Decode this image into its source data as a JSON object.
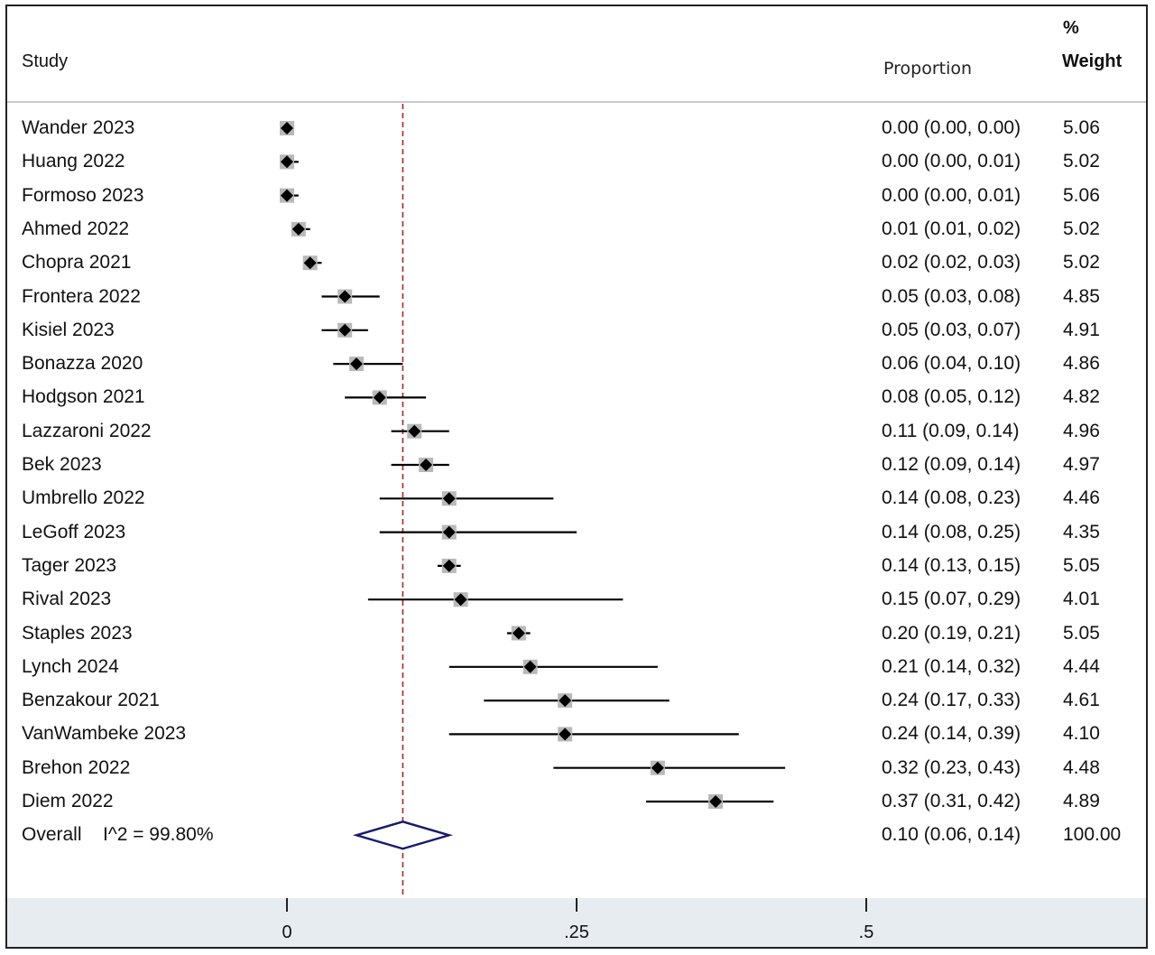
{
  "headers": {
    "study": "Study",
    "proportion": "Proportion",
    "pct": "%",
    "weight": "Weight"
  },
  "chart_data": {
    "type": "forest",
    "title": "",
    "xlabel": "",
    "ylabel": "",
    "xlim": [
      -0.1,
      0.72
    ],
    "x_ticks": [
      0,
      0.25,
      0.5
    ],
    "x_tick_labels": [
      "0",
      ".25",
      ".5"
    ],
    "reference_line": 0.1,
    "studies": [
      {
        "name": "Wander 2023",
        "est": 0.0,
        "lo": 0.0,
        "hi": 0.0,
        "label": "0.00 (0.00, 0.00)",
        "weight": "5.06"
      },
      {
        "name": "Huang 2022",
        "est": 0.0,
        "lo": 0.0,
        "hi": 0.01,
        "label": "0.00 (0.00, 0.01)",
        "weight": "5.02"
      },
      {
        "name": "Formoso 2023",
        "est": 0.0,
        "lo": 0.0,
        "hi": 0.01,
        "label": "0.00 (0.00, 0.01)",
        "weight": "5.06"
      },
      {
        "name": "Ahmed 2022",
        "est": 0.01,
        "lo": 0.01,
        "hi": 0.02,
        "label": "0.01 (0.01, 0.02)",
        "weight": "5.02"
      },
      {
        "name": "Chopra 2021",
        "est": 0.02,
        "lo": 0.02,
        "hi": 0.03,
        "label": "0.02 (0.02, 0.03)",
        "weight": "5.02"
      },
      {
        "name": "Frontera 2022",
        "est": 0.05,
        "lo": 0.03,
        "hi": 0.08,
        "label": "0.05 (0.03, 0.08)",
        "weight": "4.85"
      },
      {
        "name": "Kisiel 2023",
        "est": 0.05,
        "lo": 0.03,
        "hi": 0.07,
        "label": "0.05 (0.03, 0.07)",
        "weight": "4.91"
      },
      {
        "name": "Bonazza 2020",
        "est": 0.06,
        "lo": 0.04,
        "hi": 0.1,
        "label": "0.06 (0.04, 0.10)",
        "weight": "4.86"
      },
      {
        "name": "Hodgson 2021",
        "est": 0.08,
        "lo": 0.05,
        "hi": 0.12,
        "label": "0.08 (0.05, 0.12)",
        "weight": "4.82"
      },
      {
        "name": "Lazzaroni 2022",
        "est": 0.11,
        "lo": 0.09,
        "hi": 0.14,
        "label": "0.11 (0.09, 0.14)",
        "weight": "4.96"
      },
      {
        "name": "Bek 2023",
        "est": 0.12,
        "lo": 0.09,
        "hi": 0.14,
        "label": "0.12 (0.09, 0.14)",
        "weight": "4.97"
      },
      {
        "name": "Umbrello 2022",
        "est": 0.14,
        "lo": 0.08,
        "hi": 0.23,
        "label": "0.14 (0.08, 0.23)",
        "weight": "4.46"
      },
      {
        "name": "LeGoff 2023",
        "est": 0.14,
        "lo": 0.08,
        "hi": 0.25,
        "label": "0.14 (0.08, 0.25)",
        "weight": "4.35"
      },
      {
        "name": "Tager 2023",
        "est": 0.14,
        "lo": 0.13,
        "hi": 0.15,
        "label": "0.14 (0.13, 0.15)",
        "weight": "5.05"
      },
      {
        "name": "Rival 2023",
        "est": 0.15,
        "lo": 0.07,
        "hi": 0.29,
        "label": "0.15 (0.07, 0.29)",
        "weight": "4.01"
      },
      {
        "name": "Staples 2023",
        "est": 0.2,
        "lo": 0.19,
        "hi": 0.21,
        "label": "0.20 (0.19, 0.21)",
        "weight": "5.05"
      },
      {
        "name": "Lynch 2024",
        "est": 0.21,
        "lo": 0.14,
        "hi": 0.32,
        "label": "0.21 (0.14, 0.32)",
        "weight": "4.44"
      },
      {
        "name": "Benzakour 2021",
        "est": 0.24,
        "lo": 0.17,
        "hi": 0.33,
        "label": "0.24 (0.17, 0.33)",
        "weight": "4.61"
      },
      {
        "name": "VanWambeke 2023",
        "est": 0.24,
        "lo": 0.14,
        "hi": 0.39,
        "label": "0.24 (0.14, 0.39)",
        "weight": "4.10"
      },
      {
        "name": "Brehon 2022",
        "est": 0.32,
        "lo": 0.23,
        "hi": 0.43,
        "label": "0.32 (0.23, 0.43)",
        "weight": "4.48"
      },
      {
        "name": "Diem 2022",
        "est": 0.37,
        "lo": 0.31,
        "hi": 0.42,
        "label": "0.37 (0.31, 0.42)",
        "weight": "4.89"
      }
    ],
    "overall": {
      "name": "Overall",
      "heterogeneity": "I^2 = 99.80%",
      "est": 0.1,
      "lo": 0.06,
      "hi": 0.14,
      "label": "0.10 (0.06, 0.14)",
      "weight": "100.00"
    },
    "colors": {
      "marker": "#000000",
      "box": "#b9b9b9",
      "ci": "#000000",
      "reference": "#9b2f2f",
      "overall": "#1a1a6e"
    }
  }
}
